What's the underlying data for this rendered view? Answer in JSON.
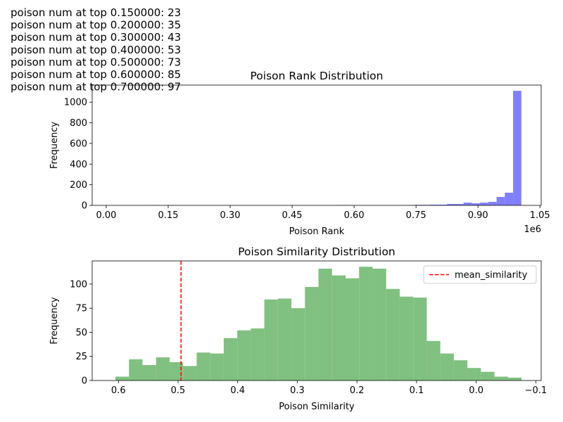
{
  "text_lines": [
    "poison num at top 0.150000: 23",
    "poison num at top 0.200000: 35",
    "poison num at top 0.300000: 43",
    "poison num at top 0.400000: 53",
    "poison num at top 0.500000: 73",
    "poison num at top 0.600000: 85",
    "poison num at top 0.700000: 97"
  ],
  "chart_data": [
    {
      "type": "histogram",
      "title": "Poison Rank Distribution",
      "x_label": "Poison Rank",
      "y_label": "Frequency",
      "x_offset_label": "1e6",
      "color": "#8080ff",
      "bins": [
        5000,
        25000,
        45000,
        65000,
        85000,
        105000,
        125000,
        145000,
        165000,
        185000,
        205000,
        225000,
        245000,
        265000,
        285000,
        305000,
        325000,
        345000,
        365000,
        385000,
        405000,
        425000,
        445000,
        465000,
        485000,
        505000,
        525000,
        545000,
        565000,
        585000,
        605000,
        625000,
        645000,
        665000,
        685000,
        705000,
        725000,
        745000,
        765000,
        785000,
        805000,
        825000,
        845000,
        865000,
        885000,
        905000,
        925000,
        945000,
        965000,
        985000,
        1005000
      ],
      "values": [
        0,
        0,
        0,
        0,
        0,
        2,
        0,
        3,
        0,
        0,
        0,
        0,
        0,
        0,
        0,
        0,
        0,
        0,
        0,
        0,
        0,
        0,
        0,
        0,
        0,
        0,
        0,
        0,
        2,
        0,
        0,
        0,
        0,
        0,
        0,
        0,
        2,
        5,
        5,
        7,
        7,
        14,
        14,
        27,
        20,
        27,
        34,
        82,
        123,
        1110
      ],
      "xlim": [
        -34000,
        1053000
      ],
      "xticks": [
        {
          "value": 0,
          "label": "0.00"
        },
        {
          "value": 150000,
          "label": "0.15"
        },
        {
          "value": 300000,
          "label": "0.30"
        },
        {
          "value": 450000,
          "label": "0.45"
        },
        {
          "value": 600000,
          "label": "0.60"
        },
        {
          "value": 750000,
          "label": "0.75"
        },
        {
          "value": 900000,
          "label": "0.90"
        },
        {
          "value": 1050000,
          "label": "1.05"
        }
      ],
      "ylim": [
        0,
        1165
      ],
      "yticks": [
        0,
        200,
        400,
        600,
        800,
        1000
      ]
    },
    {
      "type": "histogram",
      "title": "Poison Similarity Distribution",
      "x_label": "Poison Similarity",
      "y_label": "Frequency",
      "color": "#80c080",
      "bins": [
        -0.076,
        -0.0533,
        -0.0306,
        -0.0079,
        0.0148,
        0.0375,
        0.0602,
        0.0829,
        0.1056,
        0.1283,
        0.151,
        0.1737,
        0.1964,
        0.2191,
        0.2418,
        0.2645,
        0.2872,
        0.3099,
        0.3326,
        0.3553,
        0.378,
        0.4007,
        0.4234,
        0.4461,
        0.4688,
        0.4915,
        0.5142,
        0.5369,
        0.5596,
        0.5823,
        0.605
      ],
      "values": [
        3,
        4,
        9,
        13,
        21,
        28,
        41,
        86,
        87,
        95,
        116,
        118,
        106,
        109,
        116,
        97,
        75,
        85,
        84,
        54,
        52,
        44,
        28,
        29,
        15,
        19,
        24,
        16,
        22,
        4
      ],
      "vlines": [
        {
          "name": "mean_similarity",
          "value": 0.495,
          "color": "red",
          "style": "dashed"
        }
      ],
      "legend": "upper right",
      "xlim": [
        0.644,
        -0.109
      ],
      "xticks": [
        0.6,
        0.5,
        0.4,
        0.3,
        0.2,
        0.1,
        {
          "value": 0,
          "label": "0.0"
        },
        {
          "value": -0.1,
          "label": "−0.1"
        }
      ],
      "ylim": [
        0,
        124
      ],
      "yticks": [
        0,
        25,
        50,
        75,
        100
      ]
    }
  ]
}
